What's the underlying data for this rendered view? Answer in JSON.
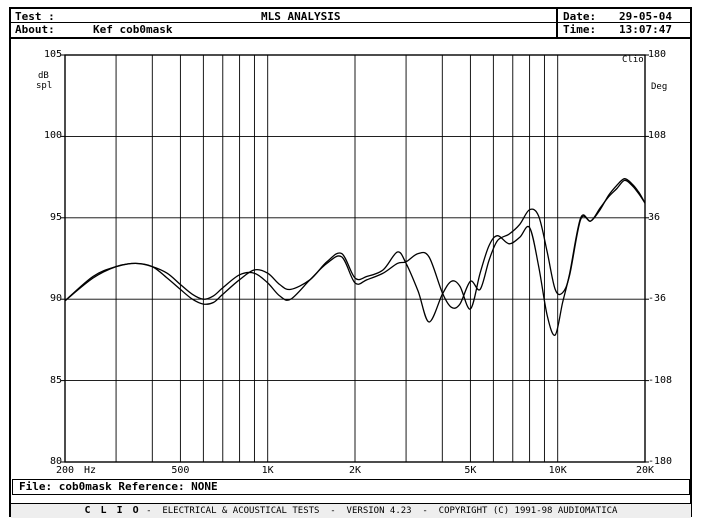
{
  "header": {
    "test_label": "Test :",
    "title": "MLS ANALYSIS",
    "about_label": "About:",
    "about_value": "Kef cob0mask",
    "date_label": "Date:",
    "date_value": "29-05-04",
    "time_label": "Time:",
    "time_value": "13:07:47"
  },
  "axis": {
    "left_unit_top": "dB",
    "left_unit_bottom": "spl",
    "right_unit": "Deg",
    "clio_mark": "Clio",
    "hz_label": "Hz"
  },
  "file_bar": "File: cob0mask Reference: NONE",
  "footer": {
    "brand": "C L I O",
    "text": " -  ELECTRICAL & ACOUSTICAL TESTS  -  VERSION 4.23  -  COPYRIGHT (C) 1991-98 AUDIOMATICA"
  },
  "chart_data": {
    "type": "line",
    "x_scale": "log",
    "xlim": [
      200,
      20000
    ],
    "ylim": [
      80,
      105
    ],
    "y2lim": [
      -180,
      180
    ],
    "grid": true,
    "x_tick_labels": [
      {
        "value": 200,
        "label": "200"
      },
      {
        "value": 500,
        "label": "500"
      },
      {
        "value": 1000,
        "label": "1K"
      },
      {
        "value": 2000,
        "label": "2K"
      },
      {
        "value": 5000,
        "label": "5K"
      },
      {
        "value": 10000,
        "label": "10K"
      },
      {
        "value": 20000,
        "label": "20K"
      }
    ],
    "y_tick_labels": [
      {
        "value": 105,
        "label": "105"
      },
      {
        "value": 100,
        "label": "100"
      },
      {
        "value": 95,
        "label": "95"
      },
      {
        "value": 90,
        "label": "90"
      },
      {
        "value": 85,
        "label": "85"
      },
      {
        "value": 80,
        "label": "80"
      }
    ],
    "y2_tick_labels": [
      {
        "value": 180,
        "label": "180"
      },
      {
        "value": 108,
        "label": "108"
      },
      {
        "value": 36,
        "label": "36"
      },
      {
        "value": -36,
        "label": "-36"
      },
      {
        "value": -108,
        "label": "-108"
      },
      {
        "value": -180,
        "label": "-180"
      }
    ],
    "series": [
      {
        "x": [
          200,
          250,
          300,
          350,
          400,
          450,
          500,
          550,
          600,
          650,
          700,
          800,
          900,
          1000,
          1100,
          1200,
          1400,
          1600,
          1800,
          2000,
          2200,
          2500,
          2800,
          3000,
          3300,
          3600,
          4000,
          4300,
          4600,
          5000,
          5400,
          5800,
          6200,
          6800,
          7400,
          8000,
          8600,
          9200,
          9800,
          10400,
          11000,
          12000,
          13000,
          14000,
          15000,
          16000,
          17000,
          18000,
          19000,
          20000
        ],
        "values": [
          89.9,
          91.3,
          92.0,
          92.2,
          92.0,
          91.3,
          90.6,
          90.0,
          89.7,
          89.8,
          90.3,
          91.2,
          91.8,
          91.6,
          90.9,
          90.6,
          91.2,
          92.3,
          92.8,
          91.3,
          91.4,
          91.8,
          92.9,
          92.2,
          90.5,
          88.6,
          90.3,
          91.1,
          90.8,
          89.4,
          91.6,
          93.3,
          93.9,
          93.4,
          93.8,
          94.4,
          92.0,
          89.0,
          87.8,
          89.8,
          91.6,
          95.0,
          94.8,
          95.6,
          96.3,
          96.8,
          97.3,
          97.0,
          96.5,
          95.9
        ]
      },
      {
        "x": [
          200,
          250,
          300,
          350,
          400,
          450,
          500,
          550,
          600,
          650,
          700,
          800,
          900,
          1000,
          1100,
          1200,
          1400,
          1600,
          1800,
          2000,
          2200,
          2500,
          2800,
          3000,
          3300,
          3600,
          4000,
          4300,
          4600,
          5000,
          5400,
          5800,
          6200,
          6800,
          7400,
          8000,
          8600,
          9200,
          9800,
          10400,
          11000,
          12000,
          13000,
          14000,
          15000,
          16000,
          17000,
          18000,
          19000,
          20000
        ],
        "values": [
          89.9,
          91.4,
          92.0,
          92.2,
          92.0,
          91.6,
          90.9,
          90.3,
          90.0,
          90.2,
          90.7,
          91.5,
          91.6,
          91.0,
          90.2,
          90.0,
          91.2,
          92.2,
          92.6,
          91.0,
          91.2,
          91.6,
          92.2,
          92.3,
          92.8,
          92.6,
          90.4,
          89.5,
          89.7,
          91.1,
          90.6,
          92.4,
          93.6,
          94.0,
          94.6,
          95.5,
          95.1,
          92.9,
          90.6,
          90.4,
          91.5,
          94.9,
          94.8,
          95.5,
          96.4,
          97.0,
          97.4,
          97.1,
          96.6,
          95.9
        ]
      }
    ]
  }
}
